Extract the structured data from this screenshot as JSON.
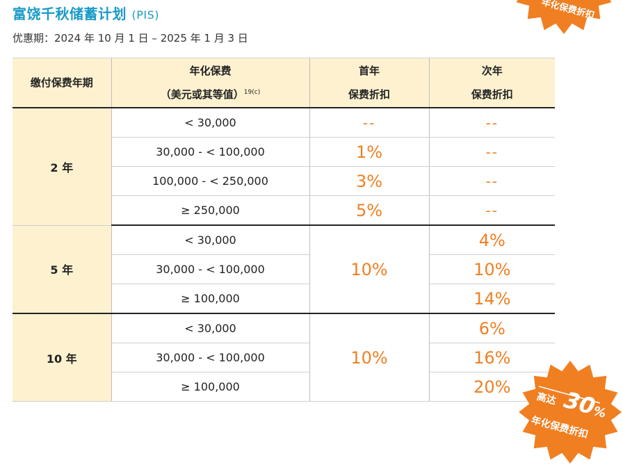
{
  "title": {
    "main": "富饶千秋储蓄计划",
    "abbr": "(PIS)"
  },
  "period": {
    "label": "优惠期：",
    "value": "2024 年 10 月 1 日 – 2025 年 1 月 3 日"
  },
  "table": {
    "headers": {
      "term": "缴付保费年期",
      "premium_line1": "年化保费",
      "premium_line2": "（美元或其等值）",
      "premium_sup": "19(c)",
      "first_line1": "首年",
      "first_line2": "保费折扣",
      "second_line1": "次年",
      "second_line2": "保费折扣"
    },
    "groups": [
      {
        "term": "2 年",
        "rows": [
          {
            "premium": "< 30,000",
            "first": "--",
            "second": "--"
          },
          {
            "premium": "30,000 - < 100,000",
            "first": "1%",
            "second": "--"
          },
          {
            "premium": "100,000 - < 250,000",
            "first": "3%",
            "second": "--"
          },
          {
            "premium": "≥ 250,000",
            "first": "5%",
            "second": "--"
          }
        ]
      },
      {
        "term": "5 年",
        "first_merged": "10%",
        "rows": [
          {
            "premium": "< 30,000",
            "second": "4%"
          },
          {
            "premium": "30,000 - < 100,000",
            "second": "10%"
          },
          {
            "premium": "≥ 100,000",
            "second": "14%"
          }
        ]
      },
      {
        "term": "10 年",
        "first_merged": "10%",
        "rows": [
          {
            "premium": "< 30,000",
            "second": "6%"
          },
          {
            "premium": "30,000 - < 100,000",
            "second": "16%"
          },
          {
            "premium": "≥ 100,000",
            "second": "20%"
          }
        ]
      }
    ]
  },
  "badge": {
    "prefix": "高达",
    "number": "30",
    "percent": "%",
    "caption": "年化保费折扣",
    "caption_top": "年化保费折扣",
    "color": "#f07f22"
  }
}
